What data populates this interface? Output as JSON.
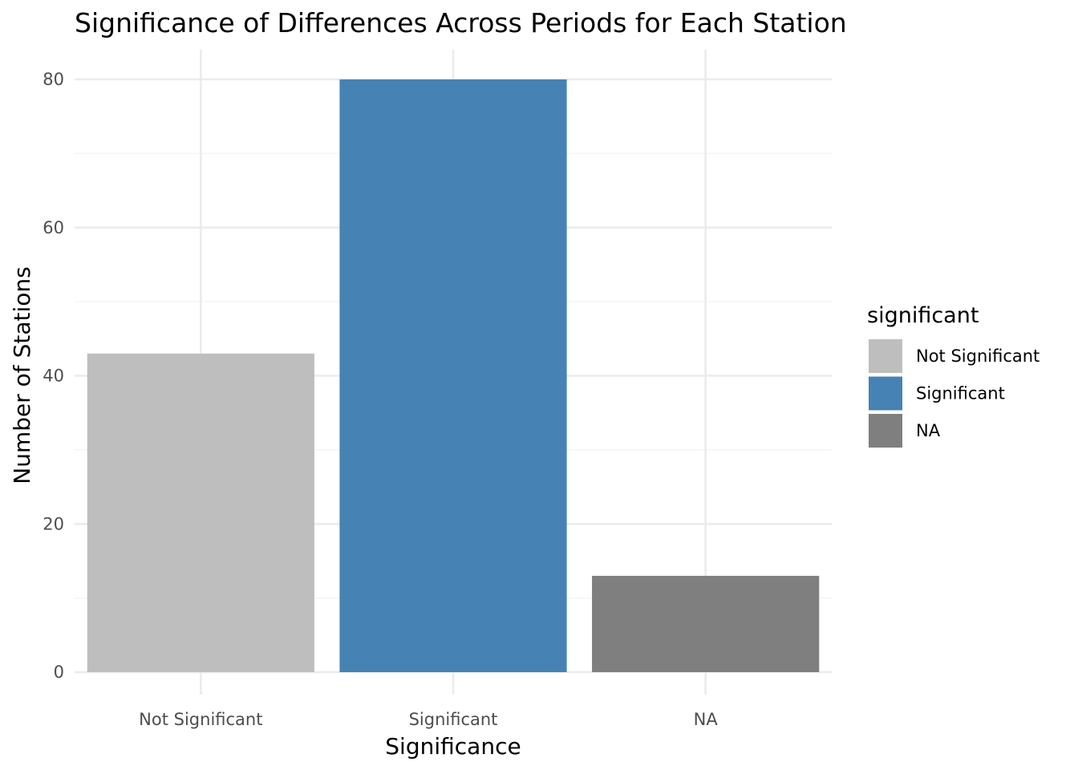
{
  "chart_data": {
    "type": "bar",
    "title": "Significance of Differences Across Periods for Each Station",
    "xlabel": "Significance",
    "ylabel": "Number of Stations",
    "categories": [
      "Not Significant",
      "Significant",
      "NA"
    ],
    "values": [
      43,
      80,
      13
    ],
    "colors": [
      "#bebebe",
      "#4682b4",
      "#7f7f7f"
    ],
    "ylim": [
      0,
      80
    ],
    "yticks": [
      0,
      20,
      40,
      60,
      80
    ],
    "grid": true,
    "legend": {
      "title": "significant",
      "placement": "right",
      "entries": [
        "Not Significant",
        "Significant",
        "NA"
      ]
    }
  }
}
